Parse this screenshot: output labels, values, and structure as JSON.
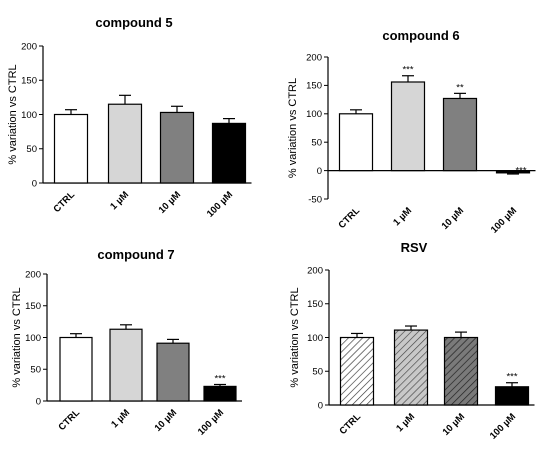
{
  "chart_data": [
    {
      "type": "bar",
      "title": "compound 5",
      "ylabel": "% variation vs CTRL",
      "categories": [
        "CTRL",
        "1 µM",
        "10 µM",
        "100 µM"
      ],
      "values": [
        100,
        115,
        103,
        87
      ],
      "errors": [
        7,
        13,
        9,
        7
      ],
      "annotations": [
        "",
        "",
        "",
        ""
      ],
      "ylim": [
        0,
        200
      ],
      "yticks": [
        "0",
        "50",
        "100",
        "150",
        "200"
      ],
      "fills": [
        "white",
        "light-gray",
        "dark-gray",
        "black"
      ]
    },
    {
      "type": "bar",
      "title": "compound 6",
      "ylabel": "% variation vs CTRL",
      "categories": [
        "CTRL",
        "1 µM",
        "10 µM",
        "100 µM"
      ],
      "values": [
        100,
        156,
        127,
        -4
      ],
      "errors": [
        7,
        11,
        9,
        2
      ],
      "annotations": [
        "",
        "***",
        "**",
        "***"
      ],
      "ylim": [
        -50,
        200
      ],
      "yticks": [
        "-50",
        "0",
        "50",
        "100",
        "150",
        "200"
      ],
      "fills": [
        "white",
        "light-gray",
        "dark-gray",
        "black"
      ]
    },
    {
      "type": "bar",
      "title": "compound 7",
      "ylabel": "% variation vs CTRL",
      "categories": [
        "CTRL",
        "1 µM",
        "10 µM",
        "100 µM"
      ],
      "values": [
        100,
        113,
        91,
        23
      ],
      "errors": [
        6,
        7,
        6,
        3
      ],
      "annotations": [
        "",
        "",
        "",
        "***"
      ],
      "ylim": [
        0,
        200
      ],
      "yticks": [
        "0",
        "50",
        "100",
        "150",
        "200"
      ],
      "fills": [
        "white",
        "light-gray",
        "dark-gray",
        "black"
      ]
    },
    {
      "type": "bar",
      "title": "RSV",
      "ylabel": "% variation vs CTRL",
      "categories": [
        "CTRL",
        "1 µM",
        "10 µM",
        "100 µM"
      ],
      "values": [
        100,
        111,
        100,
        27
      ],
      "errors": [
        6,
        6,
        8,
        6
      ],
      "annotations": [
        "",
        "",
        "",
        "***"
      ],
      "ylim": [
        0,
        200
      ],
      "yticks": [
        "0",
        "50",
        "100",
        "150",
        "200"
      ],
      "fills": [
        "hatch-light",
        "hatch-medium",
        "hatch-dark",
        "black"
      ]
    }
  ]
}
